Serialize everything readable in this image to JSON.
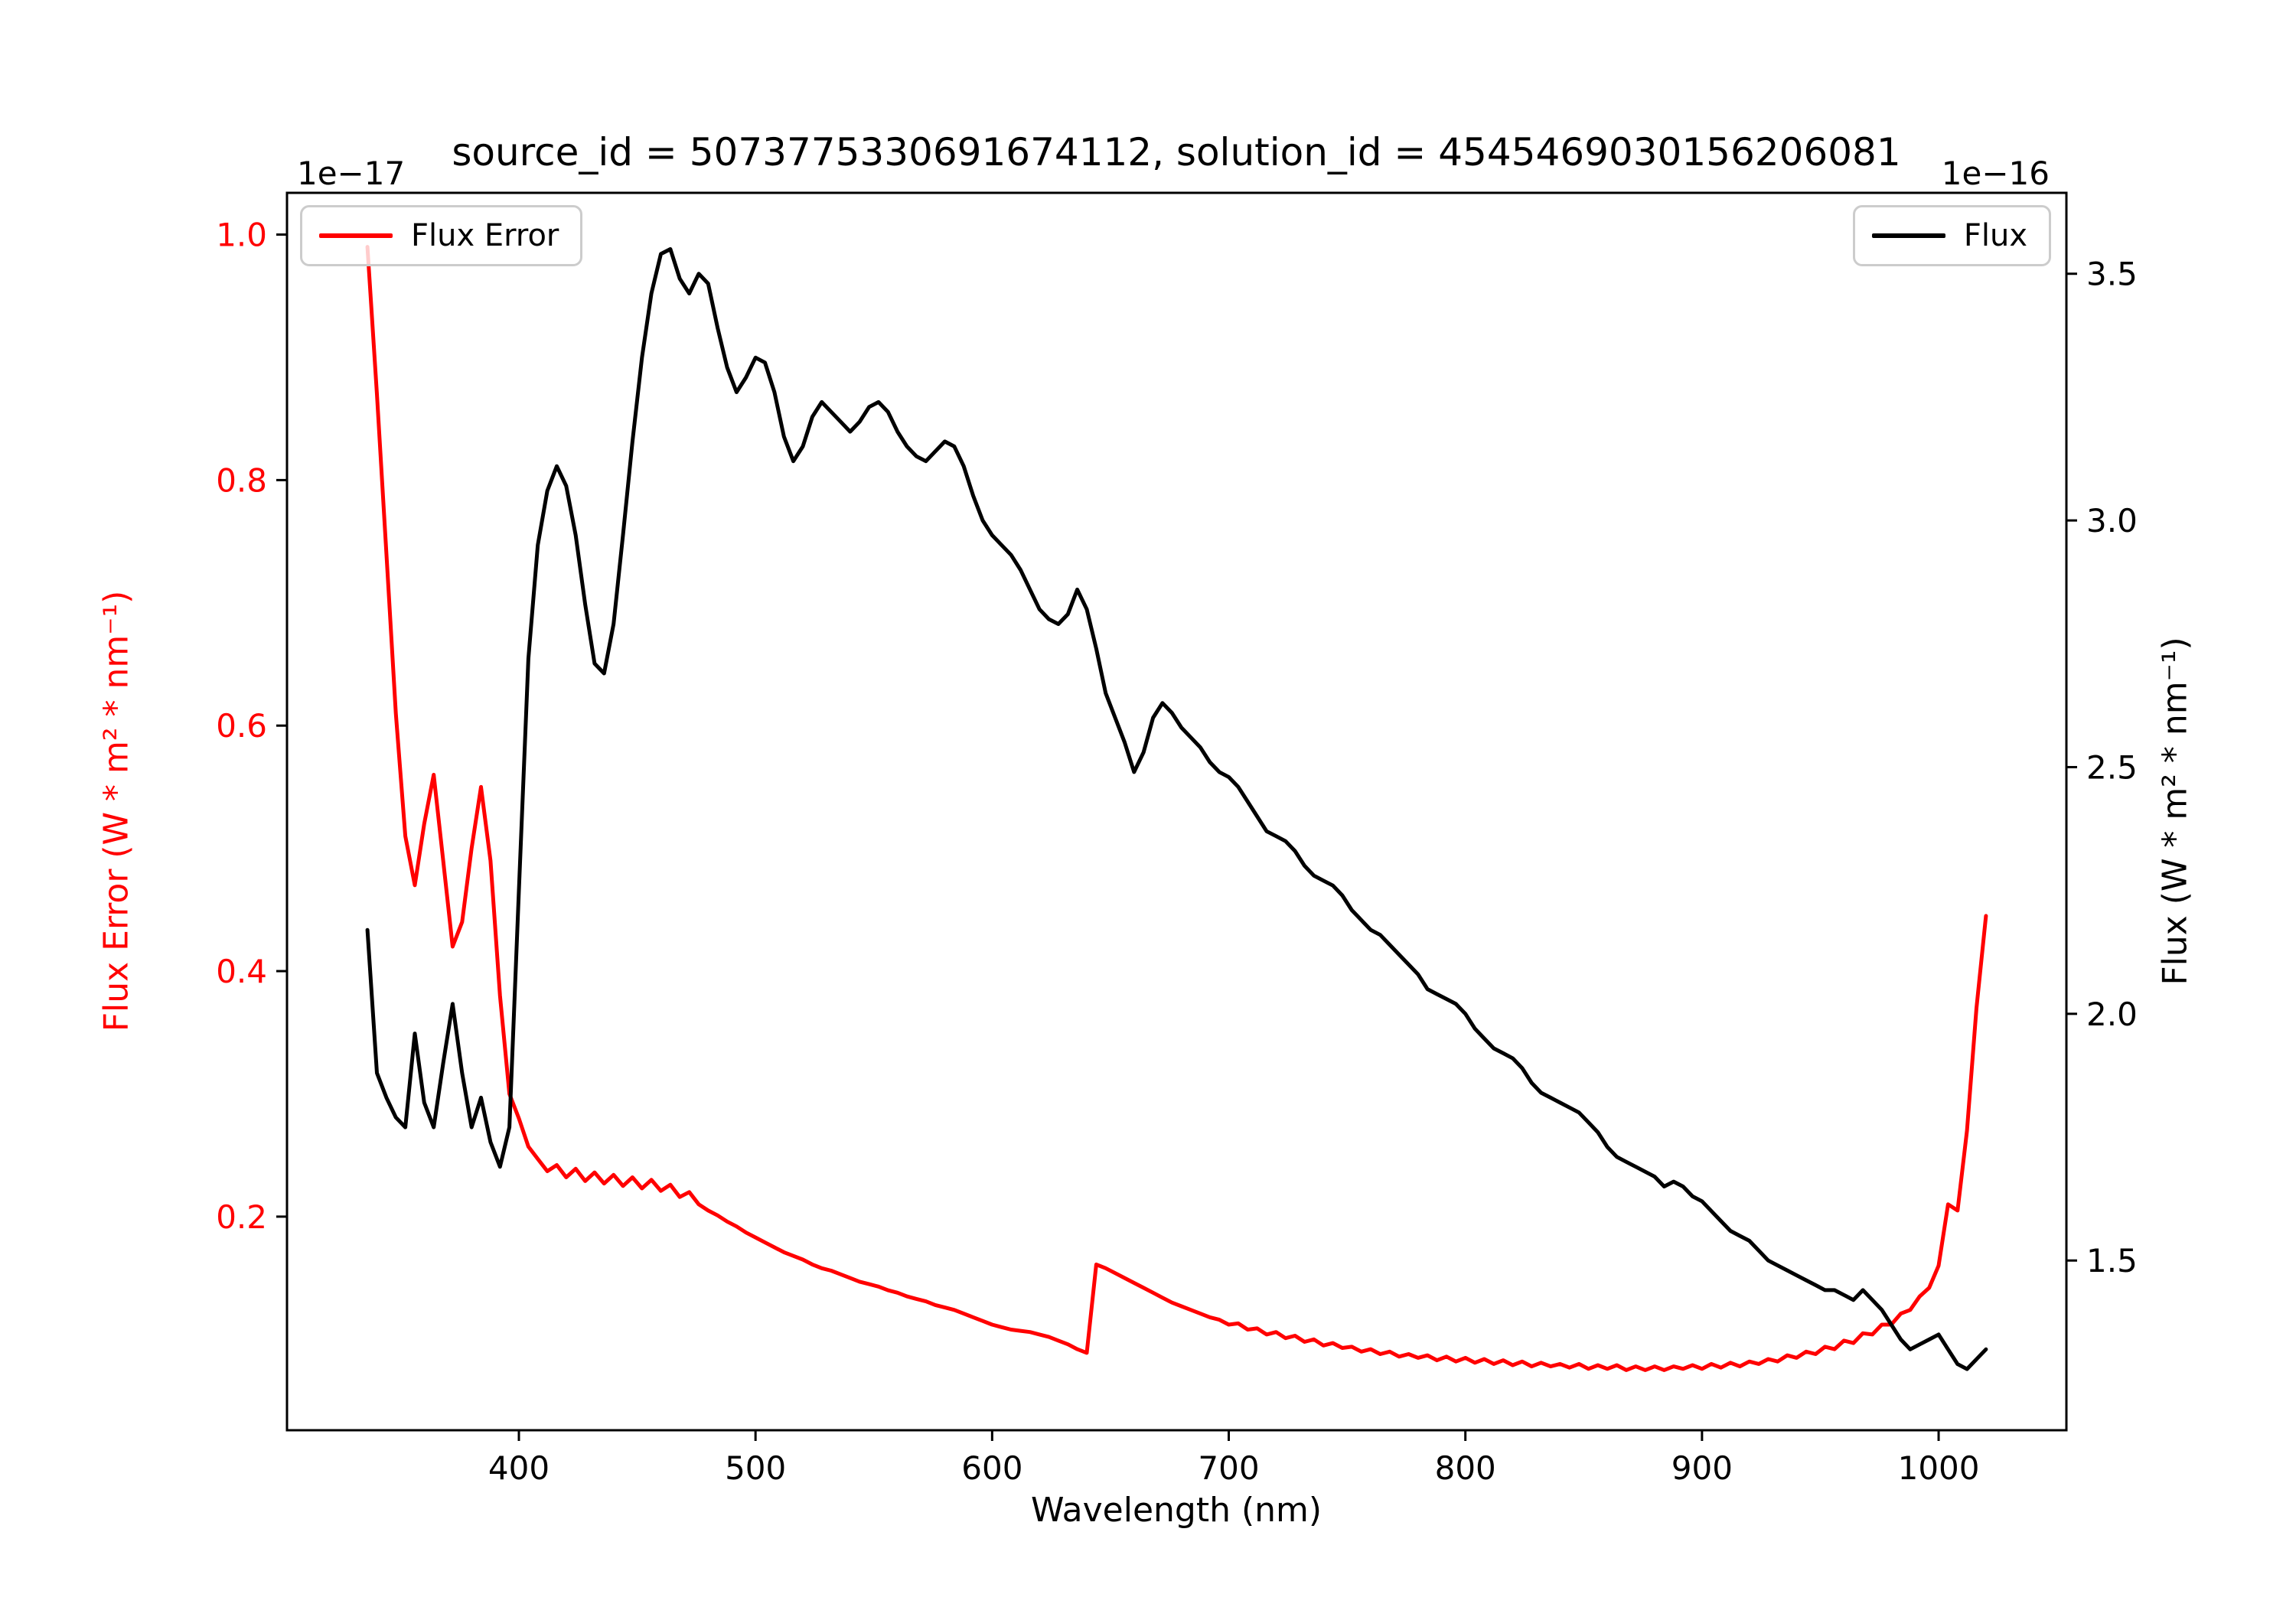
{
  "figure": {
    "background": "#ffffff"
  },
  "chart_data": {
    "type": "line",
    "title": "source_id = 5073775330691674112, solution_id = 4545469030156206081",
    "axes": {
      "xlim": [
        302,
        1054
      ],
      "x_ticks": [
        400,
        500,
        600,
        700,
        800,
        900,
        1000
      ],
      "x_label": "Wavelength (nm)",
      "grid": false,
      "left": {
        "label": "Flux Error (W * m² * nm⁻¹)",
        "color": "#ff0000",
        "lim": [
          0.026,
          1.034
        ],
        "ticks": [
          0.2,
          0.4,
          0.6,
          0.8,
          1.0
        ],
        "offset_text": "1e−17"
      },
      "right": {
        "label": "Flux (W * m² * nm⁻¹)",
        "color": "#000000",
        "lim": [
          1.156,
          3.664
        ],
        "ticks": [
          1.5,
          2.0,
          2.5,
          3.0,
          3.5
        ],
        "offset_text": "1e−16"
      }
    },
    "legend": [
      {
        "label": "Flux Error",
        "color": "#ff0000",
        "position": "upper-left"
      },
      {
        "label": "Flux",
        "color": "#000000",
        "position": "upper-right"
      }
    ],
    "x": [
      336,
      340,
      344,
      348,
      352,
      356,
      360,
      364,
      368,
      372,
      376,
      380,
      384,
      388,
      392,
      396,
      400,
      404,
      408,
      412,
      416,
      420,
      424,
      428,
      432,
      436,
      440,
      444,
      448,
      452,
      456,
      460,
      464,
      468,
      472,
      476,
      480,
      484,
      488,
      492,
      496,
      500,
      504,
      508,
      512,
      516,
      520,
      524,
      528,
      532,
      536,
      540,
      544,
      548,
      552,
      556,
      560,
      564,
      568,
      572,
      576,
      580,
      584,
      588,
      592,
      596,
      600,
      604,
      608,
      612,
      616,
      620,
      624,
      628,
      632,
      636,
      640,
      644,
      648,
      652,
      656,
      660,
      664,
      668,
      672,
      676,
      680,
      684,
      688,
      692,
      696,
      700,
      704,
      708,
      712,
      716,
      720,
      724,
      728,
      732,
      736,
      740,
      744,
      748,
      752,
      756,
      760,
      764,
      768,
      772,
      776,
      780,
      784,
      788,
      792,
      796,
      800,
      804,
      808,
      812,
      816,
      820,
      824,
      828,
      832,
      836,
      840,
      844,
      848,
      852,
      856,
      860,
      864,
      868,
      872,
      876,
      880,
      884,
      888,
      892,
      896,
      900,
      904,
      908,
      912,
      916,
      920,
      924,
      928,
      932,
      936,
      940,
      944,
      948,
      952,
      956,
      960,
      964,
      968,
      972,
      976,
      980,
      984,
      988,
      992,
      996,
      1000,
      1004,
      1008,
      1012,
      1016,
      1020
    ],
    "series": [
      {
        "name": "Flux Error",
        "data_name": "flux-error-line",
        "axis": "left",
        "units_scale": "1e-17",
        "color": "#ff0000",
        "y": [
          0.99,
          0.87,
          0.74,
          0.61,
          0.51,
          0.47,
          0.52,
          0.56,
          0.49,
          0.42,
          0.44,
          0.5,
          0.55,
          0.49,
          0.38,
          0.3,
          0.28,
          0.257,
          0.247,
          0.237,
          0.242,
          0.232,
          0.239,
          0.229,
          0.236,
          0.227,
          0.234,
          0.225,
          0.232,
          0.223,
          0.23,
          0.221,
          0.226,
          0.216,
          0.22,
          0.21,
          0.205,
          0.201,
          0.196,
          0.192,
          0.187,
          0.183,
          0.179,
          0.175,
          0.171,
          0.168,
          0.165,
          0.161,
          0.158,
          0.156,
          0.153,
          0.15,
          0.147,
          0.145,
          0.143,
          0.14,
          0.138,
          0.135,
          0.133,
          0.131,
          0.128,
          0.126,
          0.124,
          0.121,
          0.118,
          0.115,
          0.112,
          0.11,
          0.108,
          0.107,
          0.106,
          0.104,
          0.102,
          0.099,
          0.096,
          0.092,
          0.089,
          0.161,
          0.158,
          0.154,
          0.15,
          0.146,
          0.142,
          0.138,
          0.134,
          0.13,
          0.127,
          0.124,
          0.121,
          0.118,
          0.116,
          0.112,
          0.113,
          0.108,
          0.109,
          0.104,
          0.106,
          0.101,
          0.103,
          0.098,
          0.1,
          0.095,
          0.097,
          0.093,
          0.094,
          0.09,
          0.092,
          0.088,
          0.09,
          0.086,
          0.088,
          0.085,
          0.087,
          0.083,
          0.086,
          0.082,
          0.085,
          0.081,
          0.084,
          0.08,
          0.083,
          0.079,
          0.082,
          0.078,
          0.081,
          0.078,
          0.08,
          0.077,
          0.08,
          0.076,
          0.079,
          0.076,
          0.079,
          0.075,
          0.078,
          0.075,
          0.078,
          0.075,
          0.078,
          0.076,
          0.079,
          0.076,
          0.08,
          0.077,
          0.081,
          0.078,
          0.082,
          0.08,
          0.084,
          0.082,
          0.087,
          0.085,
          0.09,
          0.088,
          0.094,
          0.092,
          0.099,
          0.097,
          0.105,
          0.104,
          0.112,
          0.112,
          0.121,
          0.124,
          0.135,
          0.142,
          0.16,
          0.21,
          0.205,
          0.27,
          0.37,
          0.445
        ]
      },
      {
        "name": "Flux",
        "data_name": "flux-line",
        "axis": "right",
        "units_scale": "1e-16",
        "color": "#000000",
        "y": [
          2.17,
          1.88,
          1.83,
          1.79,
          1.77,
          1.96,
          1.82,
          1.77,
          1.9,
          2.02,
          1.88,
          1.77,
          1.83,
          1.74,
          1.69,
          1.77,
          2.25,
          2.72,
          2.95,
          3.06,
          3.11,
          3.07,
          2.97,
          2.83,
          2.71,
          2.69,
          2.79,
          2.97,
          3.16,
          3.33,
          3.46,
          3.54,
          3.55,
          3.49,
          3.46,
          3.5,
          3.48,
          3.39,
          3.31,
          3.26,
          3.29,
          3.33,
          3.32,
          3.26,
          3.17,
          3.12,
          3.15,
          3.21,
          3.24,
          3.22,
          3.2,
          3.18,
          3.2,
          3.23,
          3.24,
          3.22,
          3.18,
          3.15,
          3.13,
          3.12,
          3.14,
          3.16,
          3.15,
          3.11,
          3.05,
          3.0,
          2.97,
          2.95,
          2.93,
          2.9,
          2.86,
          2.82,
          2.8,
          2.79,
          2.81,
          2.86,
          2.82,
          2.74,
          2.65,
          2.6,
          2.55,
          2.49,
          2.53,
          2.6,
          2.63,
          2.61,
          2.58,
          2.56,
          2.54,
          2.51,
          2.49,
          2.48,
          2.46,
          2.43,
          2.4,
          2.37,
          2.36,
          2.35,
          2.33,
          2.3,
          2.28,
          2.27,
          2.26,
          2.24,
          2.21,
          2.19,
          2.17,
          2.16,
          2.14,
          2.12,
          2.1,
          2.08,
          2.05,
          2.04,
          2.03,
          2.02,
          2.0,
          1.97,
          1.95,
          1.93,
          1.92,
          1.91,
          1.89,
          1.86,
          1.84,
          1.83,
          1.82,
          1.81,
          1.8,
          1.78,
          1.76,
          1.73,
          1.71,
          1.7,
          1.69,
          1.68,
          1.67,
          1.65,
          1.66,
          1.65,
          1.63,
          1.62,
          1.6,
          1.58,
          1.56,
          1.55,
          1.54,
          1.52,
          1.5,
          1.49,
          1.48,
          1.47,
          1.46,
          1.45,
          1.44,
          1.44,
          1.43,
          1.42,
          1.44,
          1.42,
          1.4,
          1.37,
          1.34,
          1.32,
          1.33,
          1.34,
          1.35,
          1.32,
          1.29,
          1.28,
          1.3,
          1.32
        ]
      }
    ]
  }
}
